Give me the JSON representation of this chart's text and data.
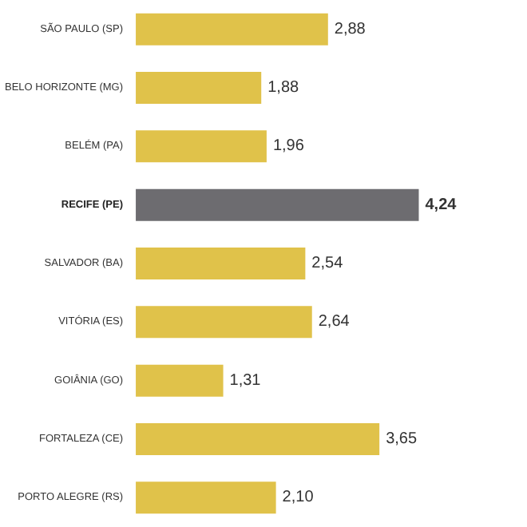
{
  "chart_data": {
    "type": "bar",
    "orientation": "horizontal",
    "categories": [
      "SÃO PAULO (SP)",
      "BELO HORIZONTE (MG)",
      "BELÉM (PA)",
      "RECIFE (PE)",
      "SALVADOR (BA)",
      "VITÓRIA (ES)",
      "GOIÂNIA (GO)",
      "FORTALEZA (CE)",
      "PORTO ALEGRE (RS)"
    ],
    "values": [
      2.88,
      1.88,
      1.96,
      4.24,
      2.54,
      2.64,
      1.31,
      3.65,
      2.1
    ],
    "value_labels": [
      "2,88",
      "1,88",
      "1,96",
      "4,24",
      "2,54",
      "2,64",
      "1,31",
      "3,65",
      "2,10"
    ],
    "colors": [
      "#e0c24a",
      "#e0c24a",
      "#e0c24a",
      "#6d6c70",
      "#e0c24a",
      "#e0c24a",
      "#e0c24a",
      "#e0c24a",
      "#e0c24a"
    ],
    "grid": false
  }
}
